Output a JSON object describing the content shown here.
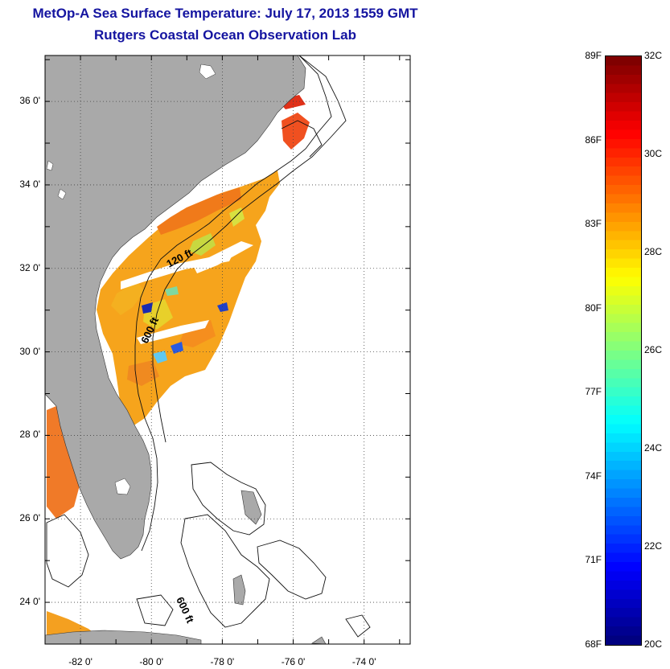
{
  "header": {
    "title": "MetOp-A Sea Surface Temperature:  July 17, 2013 1559 GMT",
    "subtitle": "Rutgers Coastal Ocean Observation Lab"
  },
  "map": {
    "lat_range": [
      23,
      37.1
    ],
    "lon_range": [
      -83,
      -72.7
    ],
    "lat_labels": [
      "24 0'",
      "26 0'",
      "28 0'",
      "30 0'",
      "32 0'",
      "34 0'",
      "36 0'"
    ],
    "lon_labels": [
      "-82 0'",
      "-80 0'",
      "-78 0'",
      "-76 0'",
      "-74 0'"
    ],
    "land_color": "#a9a9a9",
    "grid": "dotted",
    "contour_labels": [
      "120 ft",
      "600 ft",
      "600 ft"
    ]
  },
  "colorbar": {
    "range_c": [
      20,
      32
    ],
    "range_f": [
      68,
      89
    ],
    "colormap": "jet",
    "f_labels": [
      "89F",
      "86F",
      "83F",
      "80F",
      "77F",
      "74F",
      "71F",
      "68F"
    ],
    "c_labels": [
      "32C",
      "30C",
      "28C",
      "26C",
      "24C",
      "22C",
      "20C"
    ]
  }
}
